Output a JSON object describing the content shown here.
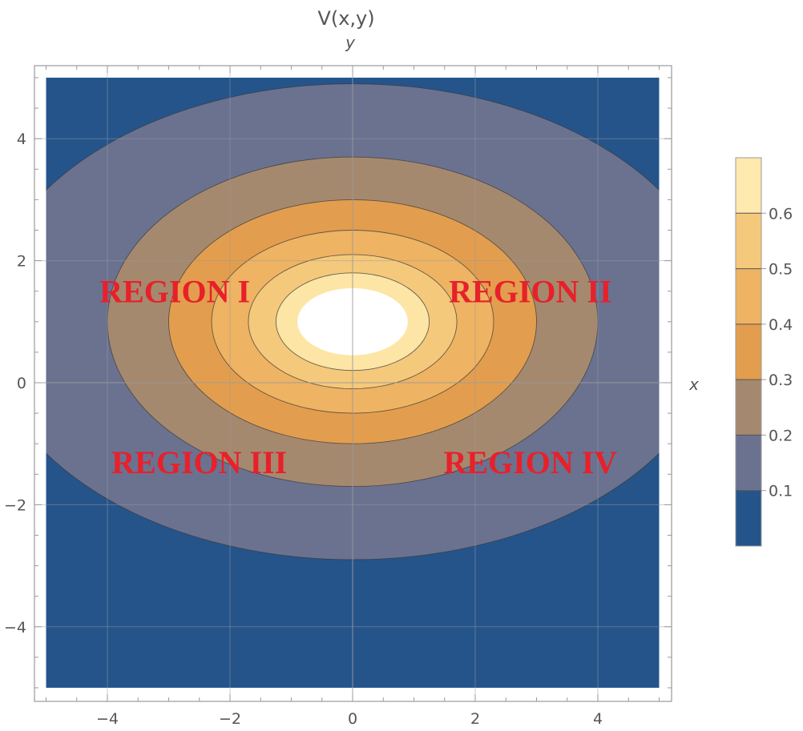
{
  "chart_data": {
    "type": "contour",
    "title": "V(x,y)",
    "xlabel": "x",
    "ylabel": "y",
    "xlim": [
      -5,
      5
    ],
    "ylim": [
      -5,
      5
    ],
    "x_ticks": [
      -4,
      -2,
      0,
      2,
      4
    ],
    "y_ticks": [
      -4,
      -2,
      0,
      2,
      4
    ],
    "tick_labels": {
      "x": [
        "−4",
        "−2",
        "0",
        "2",
        "4"
      ],
      "y": [
        "−4",
        "−2",
        "0",
        "2",
        "4"
      ]
    },
    "grid": true,
    "center": [
      0,
      1
    ],
    "contour_levels": [
      0.1,
      0.2,
      0.3,
      0.4,
      0.5,
      0.6
    ],
    "legend_range": [
      0,
      0.7
    ],
    "legend_placement": "right",
    "legend_labels": [
      "0.6",
      "0.5",
      "0.4",
      "0.3",
      "0.2",
      "0.1"
    ],
    "band_colors": [
      "#25548b",
      "#6a7290",
      "#a5896f",
      "#e29e4e",
      "#eeb363",
      "#f5c97b",
      "#fde5a5",
      "#ffffff"
    ],
    "annotations": [
      {
        "text": "REGION I",
        "x": -2.9,
        "y": 1.5
      },
      {
        "text": "REGION II",
        "x": 2.9,
        "y": 1.5
      },
      {
        "text": "REGION III",
        "x": -2.5,
        "y": -1.3
      },
      {
        "text": "REGION IV",
        "x": 2.9,
        "y": -1.3
      }
    ]
  }
}
